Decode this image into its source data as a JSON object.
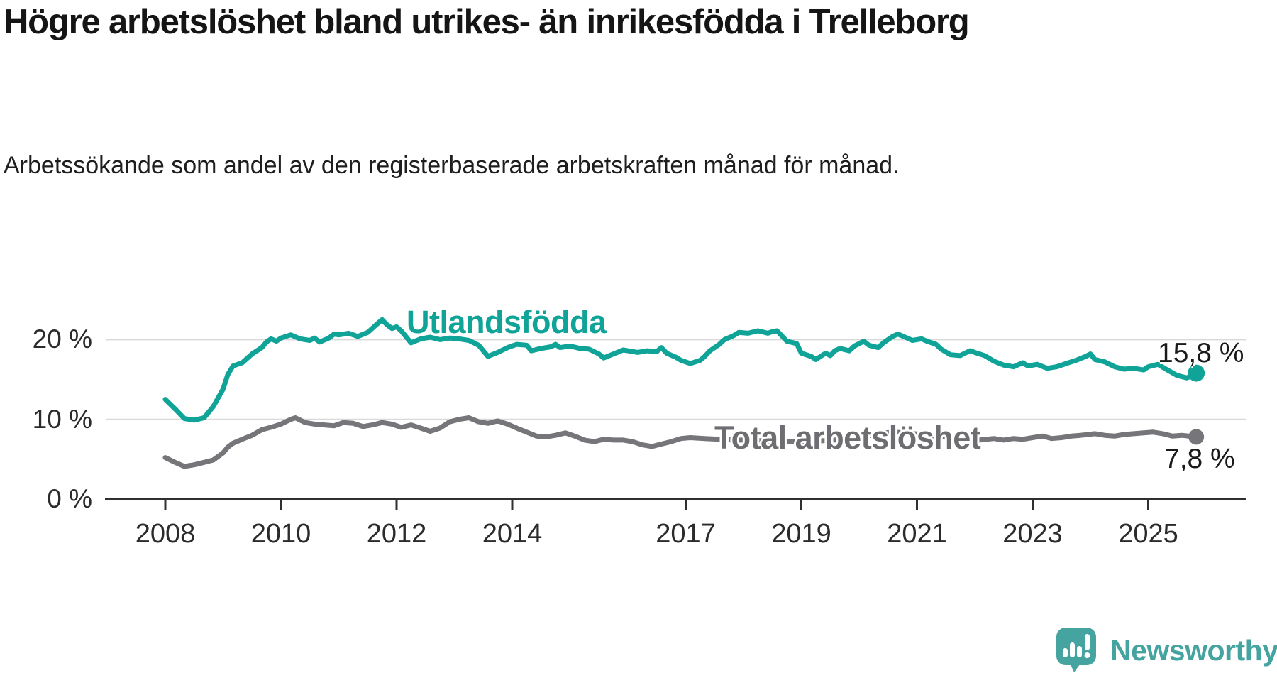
{
  "title": "Högre arbetslöshet bland utrikes- än inrikesfödda i Trelleborg",
  "subtitle": "Arbetssökande som andel av den registerbaserade arbetskraften månad för månad.",
  "branding": {
    "logo_text": "Newsworthy",
    "logo_color": "#45a3a0"
  },
  "colors": {
    "foreign_series": "#10a398",
    "total_series": "#76767a",
    "total_label": "#6d6d72",
    "axis": "#303030",
    "gridline": "#d9d9d9",
    "tick_text": "#2b2b2b"
  },
  "chart_data": {
    "type": "line",
    "title": "Högre arbetslöshet bland utrikes- än inrikesfödda i Trelleborg",
    "xlabel": "",
    "ylabel": "Arbetssökande som andel av den registerbaserade arbetskraften",
    "unit": "%",
    "grid": "horizontal",
    "legend_position": "inline-labels",
    "x_axis": {
      "tick_years": [
        2008,
        2010,
        2012,
        2014,
        2017,
        2019,
        2021,
        2023,
        2025
      ],
      "range": [
        2007.0,
        2026.6
      ]
    },
    "y_axis": {
      "ticks": [
        0,
        10,
        20
      ],
      "tick_labels": [
        "0 %",
        "10 %",
        "20 %"
      ],
      "ylim": [
        0,
        24
      ]
    },
    "series": [
      {
        "name": "Utlandsfödda",
        "color": "#10a398",
        "end_label": "15,8 %",
        "end_value": 15.8,
        "points": [
          [
            2008.0,
            12.5
          ],
          [
            2008.17,
            11.3
          ],
          [
            2008.33,
            10.1
          ],
          [
            2008.5,
            9.9
          ],
          [
            2008.67,
            10.2
          ],
          [
            2008.83,
            11.6
          ],
          [
            2009.0,
            13.8
          ],
          [
            2009.08,
            15.6
          ],
          [
            2009.17,
            16.7
          ],
          [
            2009.33,
            17.1
          ],
          [
            2009.5,
            18.2
          ],
          [
            2009.67,
            19.0
          ],
          [
            2009.75,
            19.7
          ],
          [
            2009.83,
            20.1
          ],
          [
            2009.92,
            19.8
          ],
          [
            2010.0,
            20.2
          ],
          [
            2010.17,
            20.6
          ],
          [
            2010.33,
            20.1
          ],
          [
            2010.5,
            19.9
          ],
          [
            2010.58,
            20.2
          ],
          [
            2010.67,
            19.7
          ],
          [
            2010.83,
            20.2
          ],
          [
            2010.92,
            20.7
          ],
          [
            2011.0,
            20.6
          ],
          [
            2011.17,
            20.8
          ],
          [
            2011.33,
            20.4
          ],
          [
            2011.5,
            20.9
          ],
          [
            2011.67,
            22.0
          ],
          [
            2011.75,
            22.5
          ],
          [
            2011.83,
            21.9
          ],
          [
            2011.92,
            21.4
          ],
          [
            2012.0,
            21.6
          ],
          [
            2012.08,
            21.1
          ],
          [
            2012.25,
            19.6
          ],
          [
            2012.42,
            20.1
          ],
          [
            2012.58,
            20.3
          ],
          [
            2012.75,
            20.0
          ],
          [
            2012.92,
            20.2
          ],
          [
            2013.08,
            20.1
          ],
          [
            2013.25,
            19.9
          ],
          [
            2013.42,
            19.3
          ],
          [
            2013.58,
            17.9
          ],
          [
            2013.75,
            18.4
          ],
          [
            2013.92,
            19.0
          ],
          [
            2014.08,
            19.4
          ],
          [
            2014.25,
            19.3
          ],
          [
            2014.33,
            18.6
          ],
          [
            2014.5,
            18.9
          ],
          [
            2014.67,
            19.1
          ],
          [
            2014.75,
            19.4
          ],
          [
            2014.83,
            19.0
          ],
          [
            2015.0,
            19.2
          ],
          [
            2015.17,
            18.9
          ],
          [
            2015.33,
            18.8
          ],
          [
            2015.5,
            18.2
          ],
          [
            2015.58,
            17.7
          ],
          [
            2015.75,
            18.2
          ],
          [
            2015.92,
            18.7
          ],
          [
            2016.0,
            18.6
          ],
          [
            2016.17,
            18.4
          ],
          [
            2016.33,
            18.6
          ],
          [
            2016.5,
            18.5
          ],
          [
            2016.58,
            19.0
          ],
          [
            2016.67,
            18.3
          ],
          [
            2016.83,
            17.8
          ],
          [
            2016.92,
            17.4
          ],
          [
            2017.08,
            17.0
          ],
          [
            2017.25,
            17.4
          ],
          [
            2017.33,
            17.9
          ],
          [
            2017.42,
            18.6
          ],
          [
            2017.58,
            19.4
          ],
          [
            2017.67,
            20.0
          ],
          [
            2017.83,
            20.5
          ],
          [
            2017.92,
            20.9
          ],
          [
            2018.08,
            20.8
          ],
          [
            2018.25,
            21.1
          ],
          [
            2018.42,
            20.8
          ],
          [
            2018.5,
            21.0
          ],
          [
            2018.58,
            21.1
          ],
          [
            2018.75,
            19.8
          ],
          [
            2018.92,
            19.5
          ],
          [
            2019.0,
            18.3
          ],
          [
            2019.17,
            17.9
          ],
          [
            2019.25,
            17.5
          ],
          [
            2019.42,
            18.3
          ],
          [
            2019.5,
            18.0
          ],
          [
            2019.58,
            18.6
          ],
          [
            2019.67,
            18.9
          ],
          [
            2019.83,
            18.6
          ],
          [
            2019.92,
            19.2
          ],
          [
            2020.08,
            19.8
          ],
          [
            2020.17,
            19.3
          ],
          [
            2020.33,
            19.0
          ],
          [
            2020.42,
            19.6
          ],
          [
            2020.58,
            20.4
          ],
          [
            2020.67,
            20.7
          ],
          [
            2020.83,
            20.2
          ],
          [
            2020.92,
            19.9
          ],
          [
            2021.08,
            20.1
          ],
          [
            2021.17,
            19.8
          ],
          [
            2021.33,
            19.4
          ],
          [
            2021.42,
            18.8
          ],
          [
            2021.58,
            18.1
          ],
          [
            2021.75,
            18.0
          ],
          [
            2021.83,
            18.3
          ],
          [
            2021.92,
            18.6
          ],
          [
            2022.0,
            18.4
          ],
          [
            2022.17,
            18.0
          ],
          [
            2022.33,
            17.3
          ],
          [
            2022.5,
            16.8
          ],
          [
            2022.67,
            16.6
          ],
          [
            2022.83,
            17.1
          ],
          [
            2022.92,
            16.7
          ],
          [
            2023.08,
            16.9
          ],
          [
            2023.25,
            16.4
          ],
          [
            2023.42,
            16.6
          ],
          [
            2023.58,
            17.0
          ],
          [
            2023.75,
            17.4
          ],
          [
            2023.92,
            17.9
          ],
          [
            2024.0,
            18.2
          ],
          [
            2024.08,
            17.5
          ],
          [
            2024.25,
            17.2
          ],
          [
            2024.42,
            16.6
          ],
          [
            2024.58,
            16.3
          ],
          [
            2024.75,
            16.4
          ],
          [
            2024.92,
            16.2
          ],
          [
            2025.0,
            16.6
          ],
          [
            2025.17,
            16.9
          ],
          [
            2025.33,
            16.2
          ],
          [
            2025.5,
            15.5
          ],
          [
            2025.67,
            15.2
          ],
          [
            2025.83,
            15.8
          ]
        ]
      },
      {
        "name": "Total arbetslöshet",
        "color": "#76767a",
        "end_label": "7,8 %",
        "end_value": 7.8,
        "points": [
          [
            2008.0,
            5.2
          ],
          [
            2008.17,
            4.6
          ],
          [
            2008.33,
            4.1
          ],
          [
            2008.5,
            4.3
          ],
          [
            2008.67,
            4.6
          ],
          [
            2008.83,
            4.9
          ],
          [
            2009.0,
            5.8
          ],
          [
            2009.08,
            6.5
          ],
          [
            2009.17,
            7.0
          ],
          [
            2009.33,
            7.5
          ],
          [
            2009.5,
            8.0
          ],
          [
            2009.67,
            8.7
          ],
          [
            2009.83,
            9.0
          ],
          [
            2010.0,
            9.4
          ],
          [
            2010.17,
            10.0
          ],
          [
            2010.25,
            10.2
          ],
          [
            2010.42,
            9.6
          ],
          [
            2010.58,
            9.4
          ],
          [
            2010.75,
            9.3
          ],
          [
            2010.92,
            9.2
          ],
          [
            2011.08,
            9.6
          ],
          [
            2011.25,
            9.5
          ],
          [
            2011.42,
            9.1
          ],
          [
            2011.58,
            9.3
          ],
          [
            2011.75,
            9.6
          ],
          [
            2011.92,
            9.4
          ],
          [
            2012.08,
            9.0
          ],
          [
            2012.25,
            9.3
          ],
          [
            2012.42,
            8.9
          ],
          [
            2012.58,
            8.5
          ],
          [
            2012.75,
            8.9
          ],
          [
            2012.92,
            9.7
          ],
          [
            2013.08,
            10.0
          ],
          [
            2013.25,
            10.2
          ],
          [
            2013.42,
            9.7
          ],
          [
            2013.58,
            9.5
          ],
          [
            2013.75,
            9.8
          ],
          [
            2013.92,
            9.4
          ],
          [
            2014.08,
            8.9
          ],
          [
            2014.25,
            8.4
          ],
          [
            2014.42,
            7.9
          ],
          [
            2014.58,
            7.8
          ],
          [
            2014.75,
            8.0
          ],
          [
            2014.92,
            8.3
          ],
          [
            2015.08,
            7.9
          ],
          [
            2015.25,
            7.4
          ],
          [
            2015.42,
            7.2
          ],
          [
            2015.58,
            7.5
          ],
          [
            2015.75,
            7.4
          ],
          [
            2015.92,
            7.4
          ],
          [
            2016.08,
            7.2
          ],
          [
            2016.25,
            6.8
          ],
          [
            2016.42,
            6.6
          ],
          [
            2016.58,
            6.9
          ],
          [
            2016.75,
            7.2
          ],
          [
            2016.92,
            7.6
          ],
          [
            2017.08,
            7.7
          ],
          [
            2017.33,
            7.6
          ],
          [
            2017.58,
            7.5
          ],
          [
            2017.83,
            7.4
          ],
          [
            2018.08,
            7.4
          ],
          [
            2018.33,
            7.3
          ],
          [
            2018.58,
            7.3
          ],
          [
            2018.83,
            7.2
          ],
          [
            2019.08,
            7.2
          ],
          [
            2019.33,
            7.3
          ],
          [
            2019.58,
            7.4
          ],
          [
            2019.83,
            7.5
          ],
          [
            2020.08,
            7.8
          ],
          [
            2020.33,
            8.2
          ],
          [
            2020.58,
            8.4
          ],
          [
            2020.83,
            8.3
          ],
          [
            2021.08,
            8.1
          ],
          [
            2021.33,
            7.9
          ],
          [
            2021.58,
            7.7
          ],
          [
            2021.83,
            7.5
          ],
          [
            2022.08,
            7.4
          ],
          [
            2022.33,
            7.6
          ],
          [
            2022.5,
            7.4
          ],
          [
            2022.67,
            7.6
          ],
          [
            2022.83,
            7.5
          ],
          [
            2023.0,
            7.7
          ],
          [
            2023.17,
            7.9
          ],
          [
            2023.33,
            7.6
          ],
          [
            2023.5,
            7.7
          ],
          [
            2023.67,
            7.9
          ],
          [
            2023.83,
            8.0
          ],
          [
            2024.08,
            8.2
          ],
          [
            2024.25,
            8.0
          ],
          [
            2024.42,
            7.9
          ],
          [
            2024.58,
            8.1
          ],
          [
            2024.75,
            8.2
          ],
          [
            2024.92,
            8.3
          ],
          [
            2025.08,
            8.4
          ],
          [
            2025.25,
            8.2
          ],
          [
            2025.42,
            7.9
          ],
          [
            2025.58,
            8.0
          ],
          [
            2025.83,
            7.8
          ]
        ]
      }
    ]
  }
}
